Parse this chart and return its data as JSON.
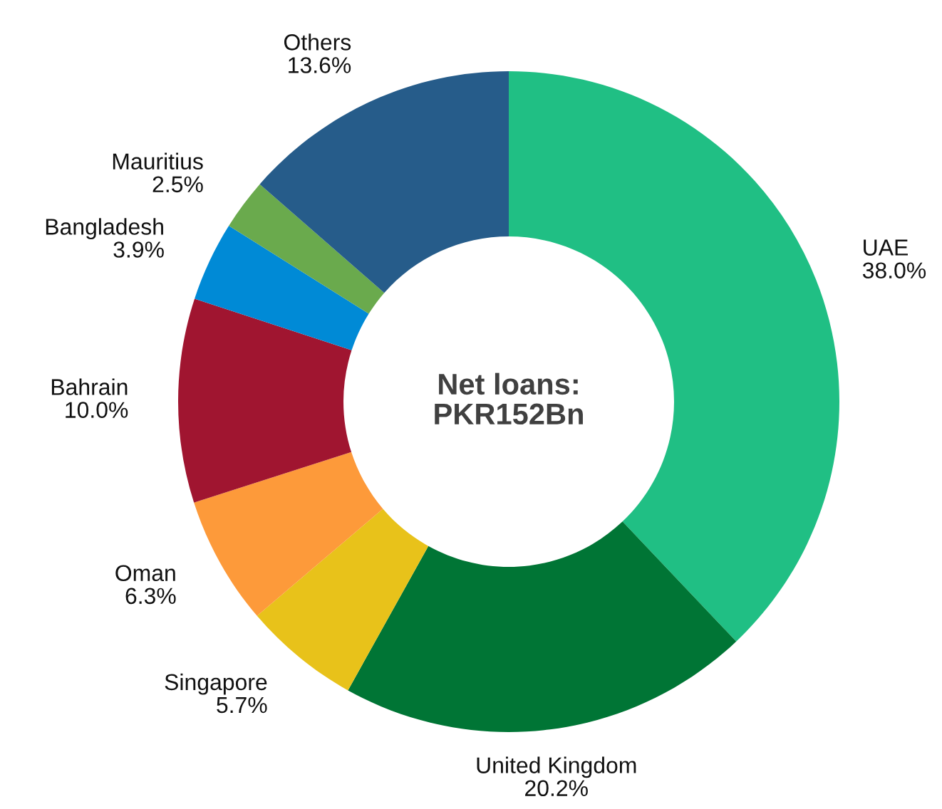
{
  "chart_data": {
    "type": "donut",
    "categories": [
      "UAE",
      "United Kingdom",
      "Singapore",
      "Oman",
      "Bahrain",
      "Bangladesh",
      "Mauritius",
      "Others"
    ],
    "values": [
      38.0,
      20.2,
      5.7,
      6.3,
      10.0,
      3.9,
      2.5,
      13.6
    ],
    "value_labels": [
      "38.0%",
      "20.2%",
      "5.7%",
      "6.3%",
      "10.0%",
      "3.9%",
      "2.5%",
      "13.6%"
    ],
    "colors": [
      "#20bf84",
      "#007535",
      "#e8c21a",
      "#fd9a3a",
      "#a01530",
      "#008ad6",
      "#6aaa4d",
      "#265c8a"
    ],
    "annotations": [
      "Net loans:\nPKR152Bn"
    ]
  }
}
